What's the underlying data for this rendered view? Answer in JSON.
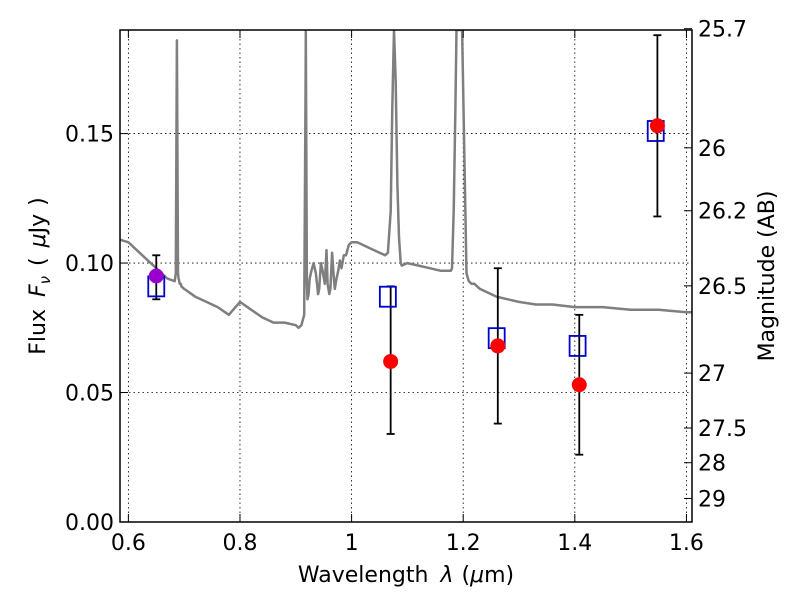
{
  "chart_data": {
    "type": "scatter",
    "xlabel": "Wavelength  λ (μm)",
    "ylabel": "Flux  F_ν  ( μJy )",
    "ylabel_parts": {
      "prefix": "Flux",
      "symbol": "F",
      "subscript": "ν",
      "open": "(",
      "unit_mu": "μ",
      "unit": "Jy",
      "close": ")"
    },
    "xlabel_parts": {
      "prefix": "Wavelength",
      "symbol": "λ",
      "unit_open": "(",
      "unit_mu": "μ",
      "unit": "m)"
    },
    "y2label": "Magnitude (AB)",
    "xlim": [
      0.585,
      1.61
    ],
    "ylim": [
      0.0,
      0.19
    ],
    "grid": true,
    "x_ticks": [
      0.6,
      0.8,
      1.0,
      1.2,
      1.4,
      1.6
    ],
    "x_tick_labels": [
      "0.6",
      "0.8",
      "1",
      "1.2",
      "1.4",
      "1.6"
    ],
    "y_ticks": [
      0.0,
      0.05,
      0.1,
      0.15
    ],
    "y_tick_labels": [
      "0.00",
      "0.05",
      "0.10",
      "0.15"
    ],
    "y2_ticks": [
      {
        "label": "25.7",
        "flux": 0.1905
      },
      {
        "label": "26",
        "flux": 0.1445
      },
      {
        "label": "26.2",
        "flux": 0.1202
      },
      {
        "label": "26.5",
        "flux": 0.0912
      },
      {
        "label": "27",
        "flux": 0.0575
      },
      {
        "label": "27.5",
        "flux": 0.0363
      },
      {
        "label": "28",
        "flux": 0.0229
      },
      {
        "label": "29",
        "flux": 0.0091
      }
    ],
    "series": [
      {
        "marker": "square-open",
        "color": "#0000cc",
        "x": [
          0.65,
          1.065,
          1.26,
          1.405,
          1.545
        ],
        "y": [
          0.091,
          0.087,
          0.071,
          0.068,
          0.151
        ]
      },
      {
        "marker": "circle",
        "color": "#ff0000",
        "x": [
          1.07,
          1.262,
          1.408,
          1.548
        ],
        "y": [
          0.062,
          0.068,
          0.053,
          0.153
        ],
        "yerr_low": [
          0.034,
          0.038,
          0.026,
          0.118
        ],
        "yerr_high": [
          0.091,
          0.098,
          0.08,
          0.188
        ]
      },
      {
        "marker": "circle",
        "color": "#9900cc",
        "x": [
          0.65
        ],
        "y": [
          0.095
        ],
        "yerr_low": [
          0.086
        ],
        "yerr_high": [
          0.103
        ]
      },
      {
        "type": "line",
        "color": "#7f7f7f",
        "x": [
          0.585,
          0.6,
          0.62,
          0.64,
          0.65,
          0.66,
          0.67,
          0.683,
          0.685,
          0.687,
          0.689,
          0.69,
          0.691,
          0.692,
          0.693,
          0.694,
          0.695,
          0.7,
          0.72,
          0.74,
          0.76,
          0.78,
          0.8,
          0.82,
          0.84,
          0.86,
          0.88,
          0.9,
          0.905,
          0.91,
          0.915,
          0.9175,
          0.918,
          0.92,
          0.921,
          0.923,
          0.925,
          0.928,
          0.932,
          0.936,
          0.938,
          0.94,
          0.942,
          0.945,
          0.948,
          0.952,
          0.955,
          0.957,
          0.96,
          0.962,
          0.965,
          0.968,
          0.97,
          0.973,
          0.976,
          0.979,
          0.982,
          0.986,
          0.99,
          0.995,
          1.0,
          1.01,
          1.02,
          1.03,
          1.04,
          1.05,
          1.06,
          1.065,
          1.07,
          1.073,
          1.076,
          1.079,
          1.082,
          1.085,
          1.088,
          1.09,
          1.1,
          1.12,
          1.14,
          1.16,
          1.175,
          1.178,
          1.18,
          1.183,
          1.186,
          1.188,
          1.19,
          1.192,
          1.195,
          1.198,
          1.203,
          1.206,
          1.21,
          1.215,
          1.22,
          1.225,
          1.23,
          1.24,
          1.25,
          1.26,
          1.28,
          1.3,
          1.33,
          1.36,
          1.4,
          1.45,
          1.5,
          1.55,
          1.6,
          1.61
        ],
        "y": [
          0.109,
          0.108,
          0.104,
          0.1,
          0.098,
          0.096,
          0.094,
          0.093,
          0.096,
          0.186,
          0.096,
          0.094,
          0.093,
          0.092,
          0.092,
          0.092,
          0.091,
          0.09,
          0.087,
          0.085,
          0.083,
          0.08,
          0.085,
          0.082,
          0.079,
          0.077,
          0.077,
          0.076,
          0.075,
          0.076,
          0.08,
          0.17,
          0.19,
          0.092,
          0.086,
          0.088,
          0.094,
          0.097,
          0.1,
          0.096,
          0.092,
          0.088,
          0.09,
          0.1,
          0.097,
          0.092,
          0.105,
          0.092,
          0.088,
          0.09,
          0.104,
          0.095,
          0.09,
          0.094,
          0.097,
          0.101,
          0.098,
          0.103,
          0.103,
          0.107,
          0.108,
          0.108,
          0.107,
          0.106,
          0.105,
          0.104,
          0.103,
          0.104,
          0.12,
          0.16,
          0.19,
          0.17,
          0.13,
          0.11,
          0.1,
          0.099,
          0.1,
          0.099,
          0.098,
          0.097,
          0.097,
          0.097,
          0.098,
          0.12,
          0.16,
          0.19,
          0.19,
          0.19,
          0.19,
          0.19,
          0.13,
          0.096,
          0.093,
          0.092,
          0.092,
          0.091,
          0.09,
          0.089,
          0.088,
          0.087,
          0.086,
          0.085,
          0.084,
          0.084,
          0.083,
          0.083,
          0.082,
          0.082,
          0.081,
          0.081
        ]
      }
    ]
  }
}
